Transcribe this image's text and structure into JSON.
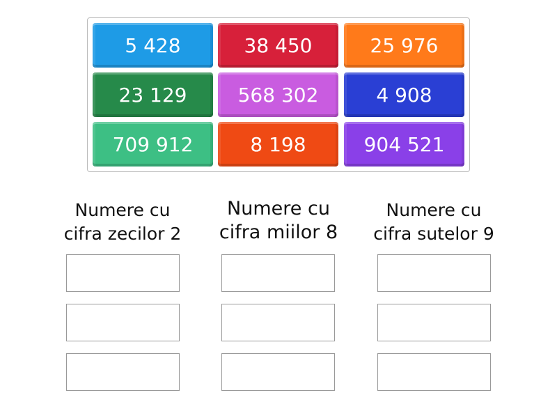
{
  "tiles": [
    {
      "label": "5 428",
      "color": "#1e9be6"
    },
    {
      "label": "38 450",
      "color": "#d7203a"
    },
    {
      "label": "25 976",
      "color": "#ff7a1a"
    },
    {
      "label": "23 129",
      "color": "#268a4a"
    },
    {
      "label": "568 302",
      "color": "#c95ce0"
    },
    {
      "label": "4 908",
      "color": "#2a3fd4"
    },
    {
      "label": "709 912",
      "color": "#3dbf84"
    },
    {
      "label": "8 198",
      "color": "#ef4a14"
    },
    {
      "label": "904 521",
      "color": "#8a40e8"
    }
  ],
  "groups": [
    {
      "line1": "Numere cu",
      "line2": "cifra zecilor 2"
    },
    {
      "line1": "Numere cu",
      "line2": "cifra miilor 8"
    },
    {
      "line1": "Numere cu",
      "line2": "cifra sutelor 9"
    }
  ]
}
